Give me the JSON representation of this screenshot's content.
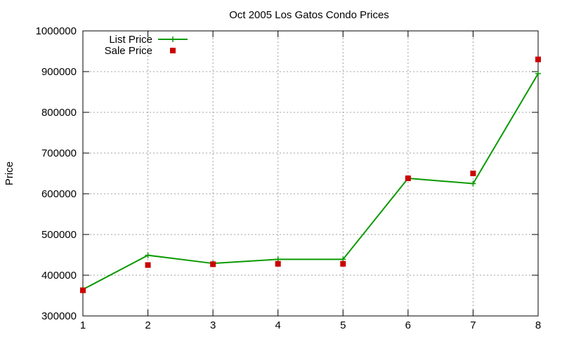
{
  "chart_data": {
    "type": "line",
    "title": "Oct 2005 Los Gatos Condo Prices",
    "xlabel": "",
    "ylabel": "Price",
    "x": [
      1,
      2,
      3,
      4,
      5,
      6,
      7,
      8
    ],
    "xlim": [
      1,
      8
    ],
    "ylim": [
      300000,
      1000000
    ],
    "xticks": [
      "1",
      "2",
      "3",
      "4",
      "5",
      "6",
      "7",
      "8"
    ],
    "yticks": [
      "300000",
      "400000",
      "500000",
      "600000",
      "700000",
      "800000",
      "900000",
      "1000000"
    ],
    "grid": true,
    "legend_position": "top-left",
    "series": [
      {
        "name": "List Price",
        "style": "lines-points",
        "marker": "plus",
        "color": "#0a9a00",
        "values": [
          365000,
          449000,
          429000,
          439000,
          439000,
          638000,
          625000,
          895000
        ]
      },
      {
        "name": "Sale Price",
        "style": "points",
        "marker": "square",
        "color": "#cc0000",
        "values": [
          363000,
          425000,
          427000,
          428000,
          428000,
          638000,
          650000,
          930000
        ]
      }
    ]
  }
}
